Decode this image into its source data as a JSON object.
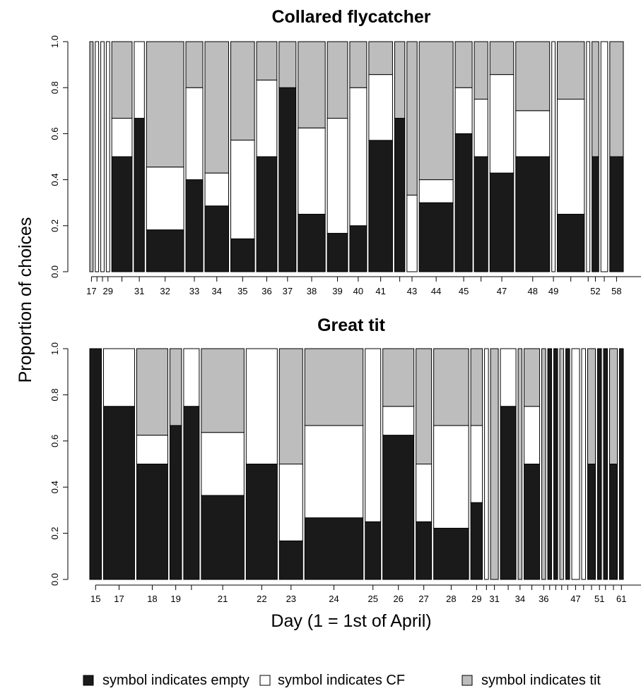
{
  "y_axis_label": "Proportion of choices",
  "x_axis_label": "Day (1 = 1st of April)",
  "legend": [
    {
      "label": "symbol indicates empty",
      "color": "#1a1a1a"
    },
    {
      "label": "symbol indicates CF",
      "color": "#ffffff"
    },
    {
      "label": "symbol indicates tit",
      "color": "#bdbdbd"
    }
  ],
  "chart_data": [
    {
      "type": "bar",
      "title": "Collared flycatcher",
      "ylim": [
        0,
        1
      ],
      "yticks": [
        "0.0",
        "0.2",
        "0.4",
        "0.6",
        "0.8",
        "1.0"
      ],
      "x_tick_labels": [
        "17",
        "29",
        "31",
        "32",
        "33",
        "34",
        "35",
        "36",
        "37",
        "38",
        "39",
        "40",
        "41",
        "43",
        "44",
        "45",
        "47",
        "48",
        "49",
        "52",
        "58"
      ],
      "stack_order": [
        "symbol indicates empty",
        "symbol indicates CF",
        "symbol indicates tit"
      ],
      "bars": [
        {
          "day": "17",
          "width": 1,
          "empty": 0,
          "cf": 0,
          "tit": 1
        },
        {
          "day": "",
          "width": 1,
          "empty": 0,
          "cf": 1,
          "tit": 0
        },
        {
          "day": "",
          "width": 1,
          "empty": 0,
          "cf": 1,
          "tit": 0
        },
        {
          "day": "29",
          "width": 1,
          "empty": 0,
          "cf": 1,
          "tit": 0
        },
        {
          "day": "",
          "width": 6,
          "empty": 0.5,
          "cf": 0.167,
          "tit": 0.333
        },
        {
          "day": "31",
          "width": 3,
          "empty": 0.667,
          "cf": 0.333,
          "tit": 0
        },
        {
          "day": "32",
          "width": 11,
          "empty": 0.182,
          "cf": 0.273,
          "tit": 0.545
        },
        {
          "day": "33",
          "width": 5,
          "empty": 0.4,
          "cf": 0.4,
          "tit": 0.2
        },
        {
          "day": "34",
          "width": 7,
          "empty": 0.286,
          "cf": 0.143,
          "tit": 0.571
        },
        {
          "day": "35",
          "width": 7,
          "empty": 0.143,
          "cf": 0.429,
          "tit": 0.428
        },
        {
          "day": "36",
          "width": 6,
          "empty": 0.5,
          "cf": 0.333,
          "tit": 0.167
        },
        {
          "day": "37",
          "width": 5,
          "empty": 0.8,
          "cf": 0,
          "tit": 0.2
        },
        {
          "day": "38",
          "width": 8,
          "empty": 0.25,
          "cf": 0.375,
          "tit": 0.375
        },
        {
          "day": "39",
          "width": 6,
          "empty": 0.167,
          "cf": 0.5,
          "tit": 0.333
        },
        {
          "day": "40",
          "width": 5,
          "empty": 0.2,
          "cf": 0.6,
          "tit": 0.2
        },
        {
          "day": "41",
          "width": 7,
          "empty": 0.571,
          "cf": 0.286,
          "tit": 0.143
        },
        {
          "day": "",
          "width": 3,
          "empty": 0.667,
          "cf": 0,
          "tit": 0.333
        },
        {
          "day": "43",
          "width": 3,
          "empty": 0,
          "cf": 0.333,
          "tit": 0.667
        },
        {
          "day": "44",
          "width": 10,
          "empty": 0.3,
          "cf": 0.1,
          "tit": 0.6
        },
        {
          "day": "45",
          "width": 5,
          "empty": 0.6,
          "cf": 0.2,
          "tit": 0.2
        },
        {
          "day": "",
          "width": 4,
          "empty": 0.5,
          "cf": 0.25,
          "tit": 0.25
        },
        {
          "day": "47",
          "width": 7,
          "empty": 0.429,
          "cf": 0.428,
          "tit": 0.143
        },
        {
          "day": "48",
          "width": 10,
          "empty": 0.5,
          "cf": 0.2,
          "tit": 0.3
        },
        {
          "day": "49",
          "width": 1,
          "empty": 0,
          "cf": 1,
          "tit": 0
        },
        {
          "day": "",
          "width": 8,
          "empty": 0.25,
          "cf": 0.5,
          "tit": 0.25
        },
        {
          "day": "",
          "width": 1,
          "empty": 0,
          "cf": 1,
          "tit": 0
        },
        {
          "day": "52",
          "width": 2,
          "empty": 0.5,
          "cf": 0,
          "tit": 0.5
        },
        {
          "day": "",
          "width": 2,
          "empty": 0,
          "cf": 1,
          "tit": 0
        },
        {
          "day": "58",
          "width": 4,
          "empty": 0.5,
          "cf": 0,
          "tit": 0.5
        }
      ]
    },
    {
      "type": "bar",
      "title": "Great tit",
      "ylim": [
        0,
        1
      ],
      "yticks": [
        "0.0",
        "0.2",
        "0.4",
        "0.6",
        "0.8",
        "1.0"
      ],
      "x_tick_labels": [
        "15",
        "17",
        "18",
        "19",
        "21",
        "22",
        "23",
        "24",
        "25",
        "26",
        "27",
        "28",
        "29",
        "31",
        "34",
        "36",
        "47",
        "51",
        "61"
      ],
      "stack_order": [
        "symbol indicates empty",
        "symbol indicates CF",
        "symbol indicates tit"
      ],
      "bars": [
        {
          "day": "15",
          "width": 3,
          "empty": 1,
          "cf": 0,
          "tit": 0
        },
        {
          "day": "17",
          "width": 8,
          "empty": 0.75,
          "cf": 0.25,
          "tit": 0
        },
        {
          "day": "18",
          "width": 8,
          "empty": 0.5,
          "cf": 0.125,
          "tit": 0.375
        },
        {
          "day": "19",
          "width": 3,
          "empty": 0.667,
          "cf": 0,
          "tit": 0.333
        },
        {
          "day": "",
          "width": 4,
          "empty": 0.75,
          "cf": 0.25,
          "tit": 0
        },
        {
          "day": "21",
          "width": 11,
          "empty": 0.364,
          "cf": 0.273,
          "tit": 0.363
        },
        {
          "day": "22",
          "width": 8,
          "empty": 0.5,
          "cf": 0.5,
          "tit": 0
        },
        {
          "day": "23",
          "width": 6,
          "empty": 0.167,
          "cf": 0.333,
          "tit": 0.5
        },
        {
          "day": "24",
          "width": 15,
          "empty": 0.267,
          "cf": 0.4,
          "tit": 0.333
        },
        {
          "day": "25",
          "width": 4,
          "empty": 0.25,
          "cf": 0.75,
          "tit": 0
        },
        {
          "day": "26",
          "width": 8,
          "empty": 0.625,
          "cf": 0.125,
          "tit": 0.25
        },
        {
          "day": "27",
          "width": 4,
          "empty": 0.25,
          "cf": 0.25,
          "tit": 0.5
        },
        {
          "day": "28",
          "width": 9,
          "empty": 0.222,
          "cf": 0.445,
          "tit": 0.333
        },
        {
          "day": "29",
          "width": 3,
          "empty": 0.333,
          "cf": 0.334,
          "tit": 0.333
        },
        {
          "day": "",
          "width": 1,
          "empty": 0,
          "cf": 1,
          "tit": 0
        },
        {
          "day": "31",
          "width": 2,
          "empty": 0,
          "cf": 0,
          "tit": 1
        },
        {
          "day": "",
          "width": 4,
          "empty": 0.75,
          "cf": 0.25,
          "tit": 0
        },
        {
          "day": "34",
          "width": 1,
          "empty": 0,
          "cf": 0,
          "tit": 1
        },
        {
          "day": "",
          "width": 4,
          "empty": 0.5,
          "cf": 0.25,
          "tit": 0.25
        },
        {
          "day": "36",
          "width": 1,
          "empty": 0,
          "cf": 0,
          "tit": 1
        },
        {
          "day": "",
          "width": 1,
          "empty": 1,
          "cf": 0,
          "tit": 0
        },
        {
          "day": "",
          "width": 1,
          "empty": 1,
          "cf": 0,
          "tit": 0
        },
        {
          "day": "",
          "width": 1,
          "empty": 0,
          "cf": 0,
          "tit": 1
        },
        {
          "day": "",
          "width": 1,
          "empty": 1,
          "cf": 0,
          "tit": 0
        },
        {
          "day": "47",
          "width": 2,
          "empty": 0,
          "cf": 1,
          "tit": 0
        },
        {
          "day": "",
          "width": 1,
          "empty": 0,
          "cf": 1,
          "tit": 0
        },
        {
          "day": "",
          "width": 2,
          "empty": 0.5,
          "cf": 0,
          "tit": 0.5
        },
        {
          "day": "51",
          "width": 1,
          "empty": 1,
          "cf": 0,
          "tit": 0
        },
        {
          "day": "",
          "width": 1,
          "empty": 1,
          "cf": 0,
          "tit": 0
        },
        {
          "day": "",
          "width": 2,
          "empty": 0.5,
          "cf": 0,
          "tit": 0.5
        },
        {
          "day": "61",
          "width": 1,
          "empty": 1,
          "cf": 0,
          "tit": 0
        }
      ]
    }
  ]
}
